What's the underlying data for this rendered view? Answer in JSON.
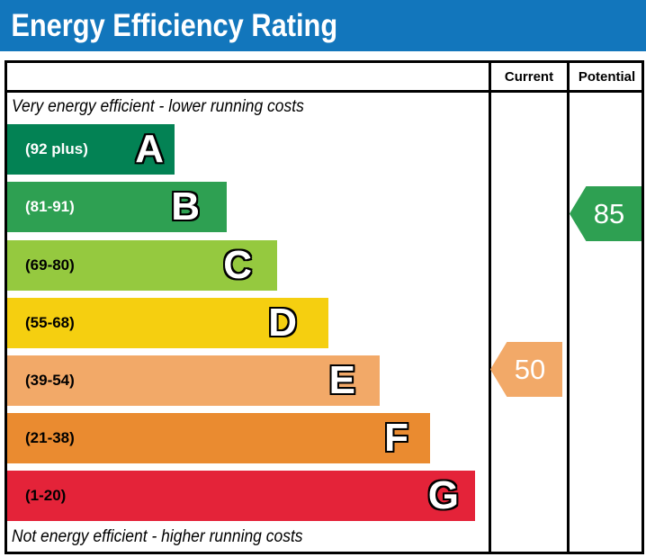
{
  "title": "Energy Efficiency Rating",
  "colors": {
    "header_bg": "#1276bc",
    "header_text": "#ffffff",
    "border": "#000000",
    "current_arrow": "#f2a968",
    "potential_arrow": "#2ea052"
  },
  "columns": {
    "current_label": "Current",
    "potential_label": "Potential"
  },
  "captions": {
    "top": "Very energy efficient - lower running costs",
    "bottom": "Not energy efficient - higher running costs"
  },
  "bands": [
    {
      "letter": "A",
      "range": "(92 plus)",
      "color": "#038254",
      "text_color": "#ffffff"
    },
    {
      "letter": "B",
      "range": "(81-91)",
      "color": "#2ea052",
      "text_color": "#ffffff"
    },
    {
      "letter": "C",
      "range": "(69-80)",
      "color": "#95c93f",
      "text_color": "#000000"
    },
    {
      "letter": "D",
      "range": "(55-68)",
      "color": "#f5cf10",
      "text_color": "#000000"
    },
    {
      "letter": "E",
      "range": "(39-54)",
      "color": "#f2a968",
      "text_color": "#000000"
    },
    {
      "letter": "F",
      "range": "(21-38)",
      "color": "#ea8b30",
      "text_color": "#000000"
    },
    {
      "letter": "G",
      "range": "(1-20)",
      "color": "#e42339",
      "text_color": "#000000"
    }
  ],
  "ratings": {
    "current_value": "50",
    "potential_value": "85"
  },
  "chart_data": {
    "type": "bar",
    "title": "Energy Efficiency Rating",
    "categories": [
      "A",
      "B",
      "C",
      "D",
      "E",
      "F",
      "G"
    ],
    "band_ranges": [
      "92 plus",
      "81-91",
      "69-80",
      "55-68",
      "39-54",
      "21-38",
      "1-20"
    ],
    "band_colors": [
      "#038254",
      "#2ea052",
      "#95c93f",
      "#f5cf10",
      "#f2a968",
      "#ea8b30",
      "#e42339"
    ],
    "columns": [
      "Current",
      "Potential"
    ],
    "current_rating": 50,
    "current_band": "E",
    "potential_rating": 85,
    "potential_band": "B",
    "annotations": [
      "Very energy efficient - lower running costs",
      "Not energy efficient - higher running costs"
    ],
    "legend_position": "none",
    "grid": false
  }
}
